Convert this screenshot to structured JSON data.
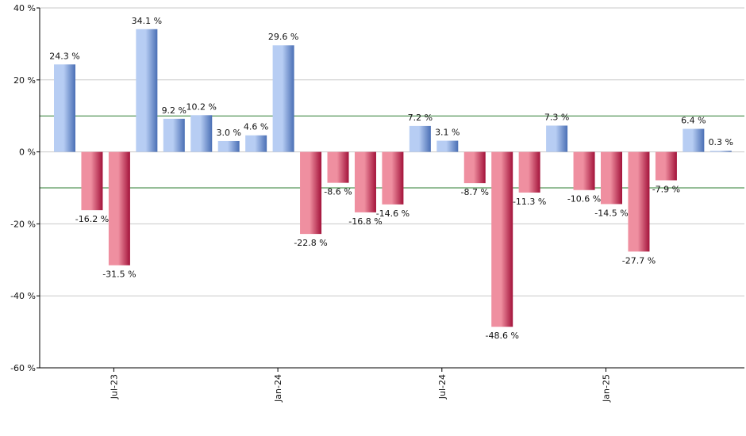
{
  "chart_data": {
    "type": "bar",
    "title": "",
    "xlabel": "",
    "ylabel": "",
    "ylim": [
      -60,
      40
    ],
    "yticks": [
      40,
      20,
      0,
      -20,
      -40,
      -60
    ],
    "y_tick_suffix": " %",
    "grid": true,
    "threshold_lines": [
      10,
      -10
    ],
    "x_tick_labels": [
      {
        "label": "Jul-23",
        "index": 2
      },
      {
        "label": "Jan-24",
        "index": 8
      },
      {
        "label": "Jul-24",
        "index": 14
      },
      {
        "label": "Jan-25",
        "index": 20
      }
    ],
    "values": [
      24.3,
      -16.2,
      -31.5,
      34.1,
      9.2,
      10.2,
      3.0,
      4.6,
      29.6,
      -22.8,
      -8.6,
      -16.8,
      -14.6,
      7.2,
      3.1,
      -8.7,
      -48.6,
      -11.3,
      7.3,
      -10.6,
      -14.5,
      -27.7,
      -7.9,
      6.4,
      0.3
    ],
    "data_labels": [
      "24.3 %",
      "-16.2 %",
      "-31.5 %",
      "34.1 %",
      "9.2 %",
      "10.2 %",
      "3.0 %",
      "4.6 %",
      "29.6 %",
      "-22.8 %",
      "-8.6 %",
      "-16.8 %",
      "-14.6 %",
      "7.2 %",
      "3.1 %",
      "-8.7 %",
      "-48.6 %",
      "-11.3 %",
      "7.3 %",
      "-10.6 %",
      "-14.5 %",
      "-27.7 %",
      "-7.9 %",
      "6.4 %",
      "0.3 %"
    ],
    "colors": {
      "positive_light": "#b7cdf3",
      "positive_dark": "#4a6fb5",
      "negative_light": "#ef8fa0",
      "negative_dark": "#a3123a",
      "threshold_line": "#2e7d32",
      "grid_line": "#c8c8c8",
      "axis_line": "#000000"
    }
  }
}
